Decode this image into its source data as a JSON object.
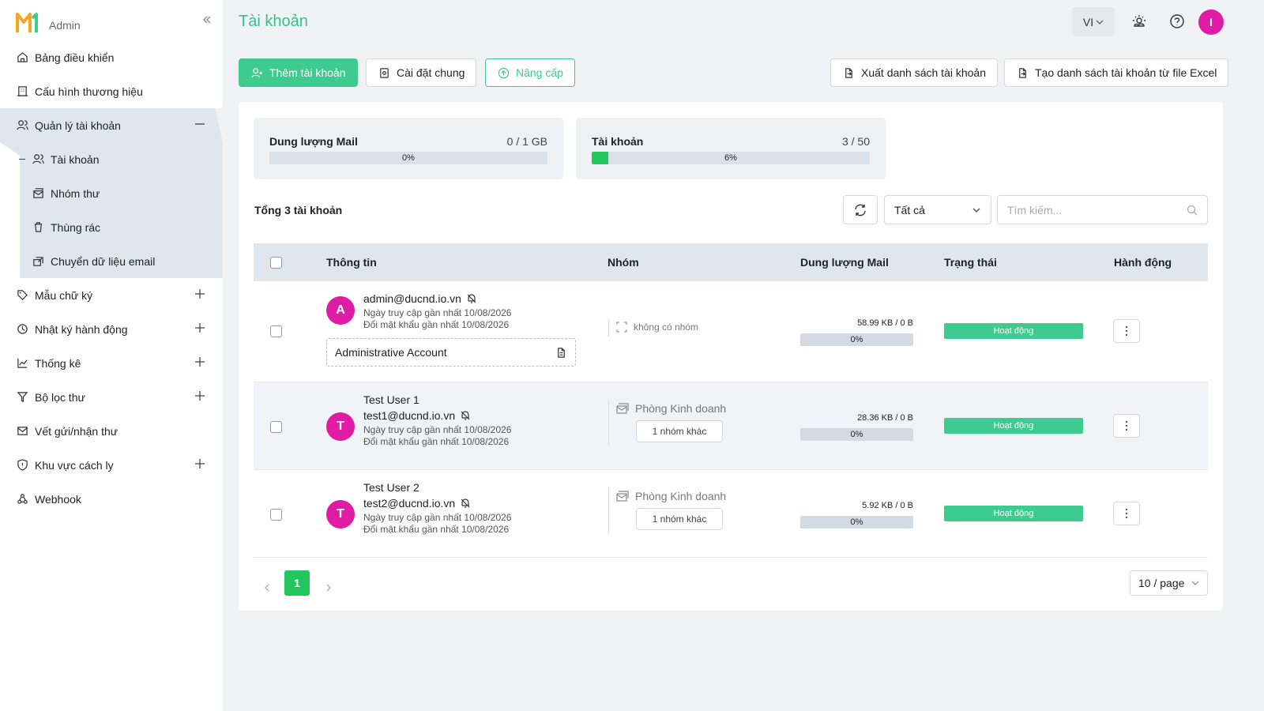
{
  "brand": {
    "text": "Admin",
    "colors": {
      "orange": "#f5a623",
      "green": "#3ecb8f"
    }
  },
  "sidebar": {
    "items": [
      {
        "label": "Bảng điều khiển",
        "icon": "home-icon"
      },
      {
        "label": "Cấu hình thương hiệu",
        "icon": "building-icon"
      },
      {
        "label": "Quản lý tài khoản",
        "icon": "users-icon",
        "expanded": true
      },
      {
        "label": "Mẫu chữ ký",
        "icon": "tag-icon"
      },
      {
        "label": "Nhật ký hành động",
        "icon": "history-icon"
      },
      {
        "label": "Thống kê",
        "icon": "chart-icon"
      },
      {
        "label": "Bộ lọc thư",
        "icon": "filter-icon"
      },
      {
        "label": "Vết gửi/nhận thư",
        "icon": "mail-track-icon"
      },
      {
        "label": "Khu vực cách ly",
        "icon": "shield-icon"
      },
      {
        "label": "Webhook",
        "icon": "webhook-icon"
      }
    ],
    "sub_items": [
      {
        "label": "Tài khoản",
        "icon": "users-icon"
      },
      {
        "label": "Nhóm thư",
        "icon": "mail-group-icon"
      },
      {
        "label": "Thùng rác",
        "icon": "trash-icon"
      },
      {
        "label": "Chuyển dữ liệu email",
        "icon": "transfer-icon"
      }
    ]
  },
  "header": {
    "title": "Tài khoản",
    "lang": "VI",
    "user_initial": "I"
  },
  "toolbar": {
    "add_label": "Thêm tài khoản",
    "settings_label": "Cài đặt chung",
    "upgrade_label": "Nâng cấp",
    "export_label": "Xuất danh sách tài khoản",
    "import_label": "Tạo danh sách tài khoản từ file Excel"
  },
  "stats": {
    "mail": {
      "label": "Dung lượng Mail",
      "value": "0 / 1 GB",
      "pct": "0%",
      "fraction": 0
    },
    "accounts": {
      "label": "Tài khoản",
      "value": "3 / 50",
      "pct": "6%",
      "fraction": 0.06
    }
  },
  "list": {
    "total": "Tổng 3 tài khoản",
    "filter": "Tất cả",
    "search_placeholder": "Tìm kiếm...",
    "columns": [
      "Thông tin",
      "Nhóm",
      "Dung lượng Mail",
      "Trạng thái",
      "Hành động"
    ],
    "rows": [
      {
        "initial": "A",
        "name": "",
        "email": "admin@ducnd.io.vn",
        "last_access": "Ngày truy cập gần nhất 10/08/2026",
        "last_pwd": "Đổi mật khẩu gần nhất 10/08/2026",
        "note": "Administrative Account",
        "group": "không có nhóm",
        "usage": "58.99 KB / 0 B",
        "usage_pct": "0%",
        "status": "Hoạt động"
      },
      {
        "initial": "T",
        "name": "Test User 1",
        "email": "test1@ducnd.io.vn",
        "last_access": "Ngày truy cập gần nhất 10/08/2026",
        "last_pwd": "Đổi mật khẩu gần nhất 10/08/2026",
        "group": "Phòng Kinh doanh",
        "group_more": "1 nhóm khác",
        "usage": "28.36 KB / 0 B",
        "usage_pct": "0%",
        "status": "Hoạt động"
      },
      {
        "initial": "T",
        "name": "Test User 2",
        "email": "test2@ducnd.io.vn",
        "last_access": "Ngày truy cập gần nhất 10/08/2026",
        "last_pwd": "Đổi mật khẩu gần nhất 10/08/2026",
        "group": "Phòng Kinh doanh",
        "group_more": "1 nhóm khác",
        "usage": "5.92 KB / 0 B",
        "usage_pct": "0%",
        "status": "Hoạt động"
      }
    ]
  },
  "pagination": {
    "current": "1",
    "page_size": "10 / page"
  }
}
